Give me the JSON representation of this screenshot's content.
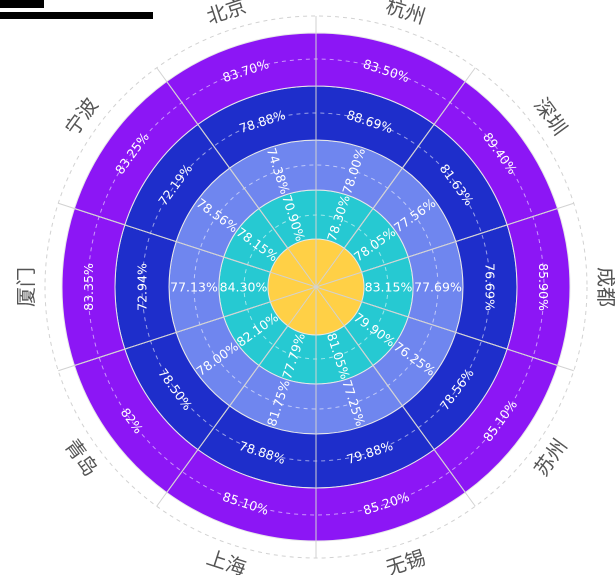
{
  "chart_data": {
    "type": "polar-stacked-bar",
    "categories": [
      "杭州",
      "深圳",
      "成都",
      "苏州",
      "无锡",
      "上海",
      "青岛",
      "厦门",
      "宁波",
      "北京"
    ],
    "series": [
      {
        "values": [
          "78.30%",
          "78.05%",
          "83.15%",
          "79.90%",
          "81.05%",
          "77.79%",
          "82.10%",
          "84.30%",
          "78.15%",
          "70.90%"
        ]
      },
      {
        "values": [
          "78.00%",
          "77.56%",
          "77.69%",
          "76.25%",
          "77.25%",
          "81.75%",
          "78.00%",
          "77.13%",
          "78.56%",
          "74.38%"
        ]
      },
      {
        "values": [
          "88.69%",
          "81.63%",
          "76.69%",
          "78.56%",
          "79.88%",
          "78.88%",
          "78.50%",
          "72.94%",
          "72.19%",
          "78.88%"
        ]
      },
      {
        "values": [
          "83.50%",
          "89.40%",
          "85.90%",
          "85.10%",
          "85.20%",
          "85.10%",
          "82%",
          "83.35%",
          "83.25%",
          "83.70%"
        ]
      }
    ],
    "colors": {
      "center": "#ffd046",
      "rings": [
        "#26c9d2",
        "#6f86ef",
        "#1e2ecb",
        "#8c16f5"
      ],
      "grid": "#d2d2d2",
      "text": "#ffffff",
      "category_text": "#555555"
    },
    "legend": "top-left"
  }
}
